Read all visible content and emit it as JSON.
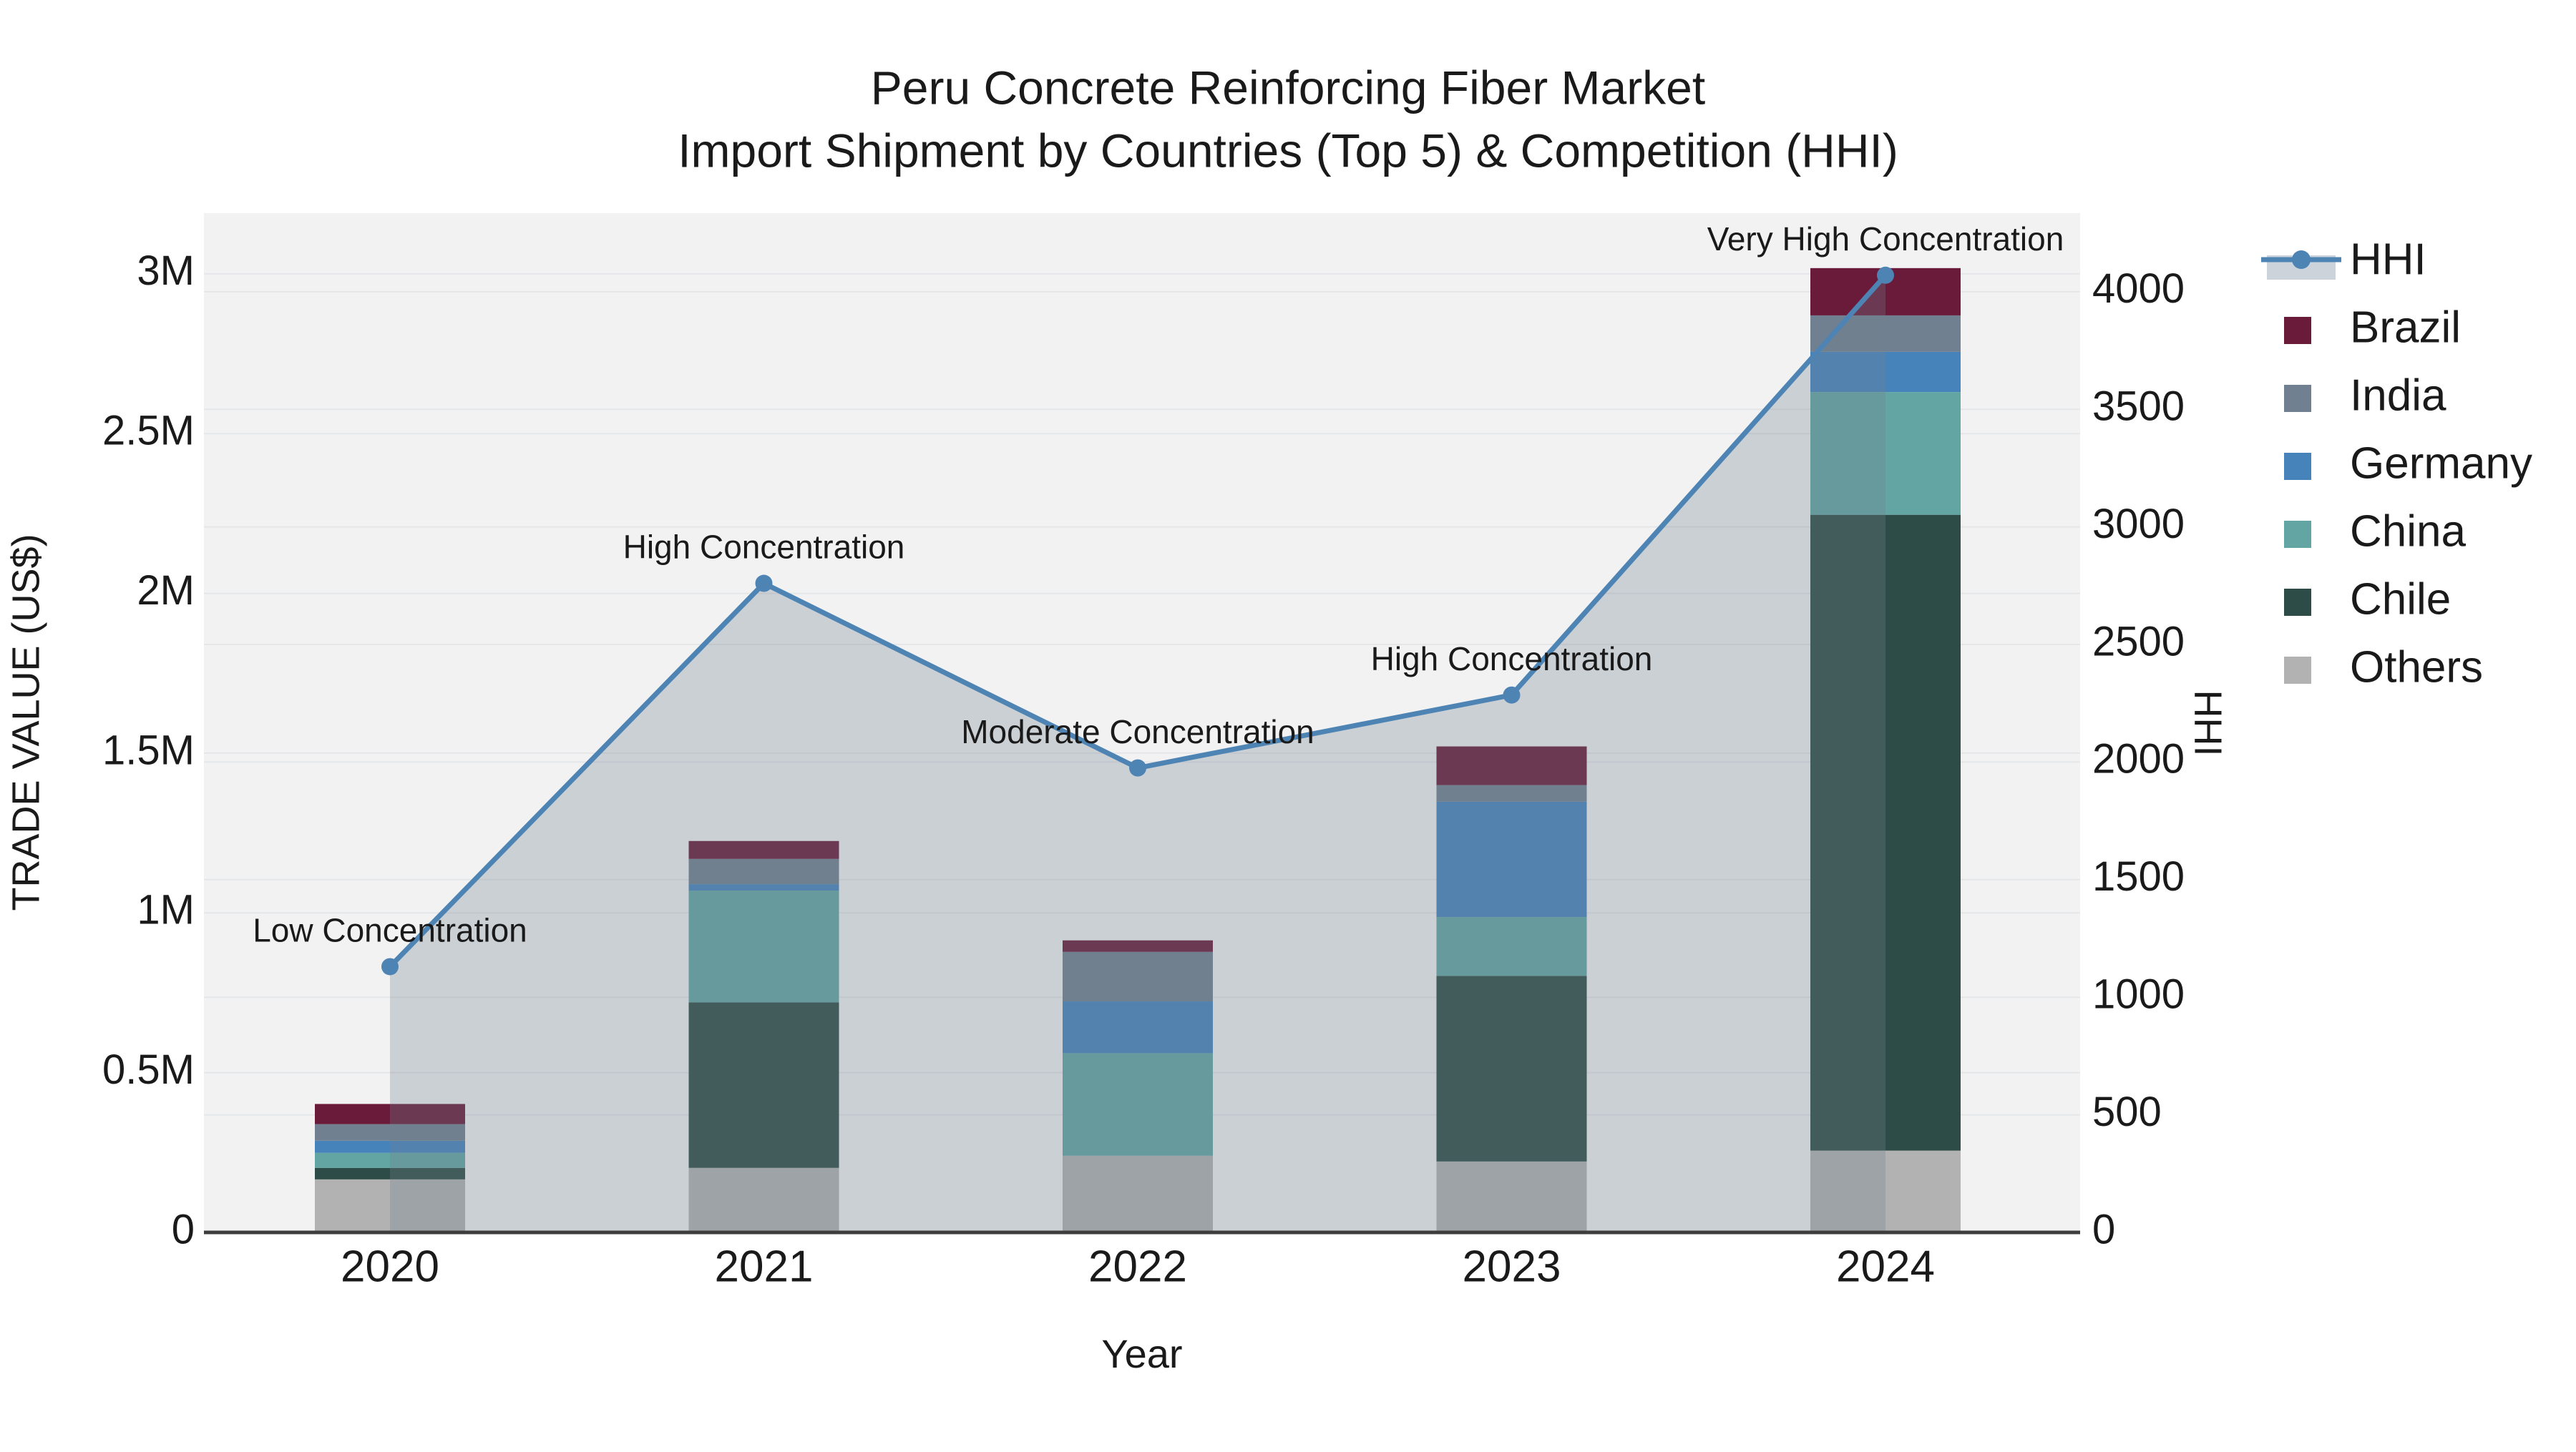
{
  "chart_data": {
    "type": "bar",
    "title": {
      "line1": "Peru Concrete Reinforcing Fiber Market",
      "line2": "Import Shipment by Countries (Top 5) & Competition (HHI)"
    },
    "categories": [
      "2020",
      "2021",
      "2022",
      "2023",
      "2024"
    ],
    "series": [
      {
        "name": "Brazil",
        "color": "#6b1b3a",
        "values": [
          0.063,
          0.056,
          0.036,
          0.121,
          0.148
        ]
      },
      {
        "name": "India",
        "color": "#708090",
        "values": [
          0.052,
          0.079,
          0.155,
          0.052,
          0.114
        ]
      },
      {
        "name": "Germany",
        "color": "#4583ba",
        "values": [
          0.038,
          0.02,
          0.162,
          0.361,
          0.126
        ]
      },
      {
        "name": "China",
        "color": "#62a5a2",
        "values": [
          0.047,
          0.35,
          0.321,
          0.184,
          0.384
        ]
      },
      {
        "name": "Chile",
        "color": "#2e4c47",
        "values": [
          0.036,
          0.518,
          0.0,
          0.581,
          1.99
        ]
      },
      {
        "name": "Others",
        "color": "#b2b2b2",
        "values": [
          0.166,
          0.202,
          0.24,
          0.222,
          0.256
        ]
      }
    ],
    "stack_order": [
      "Others",
      "Chile",
      "China",
      "Germany",
      "India",
      "Brazil"
    ],
    "bar_totals_musd": [
      0.4,
      1.22,
      0.91,
      1.52,
      3.02
    ],
    "hhi": {
      "name": "HHI",
      "line_color": "#4e84b4",
      "fill_color": "rgba(112,128,144,0.30)",
      "values": [
        1130,
        2760,
        1975,
        2285,
        4070
      ]
    },
    "annotations": [
      {
        "text": "Low Concentration",
        "category": "2020"
      },
      {
        "text": "High Concentration",
        "category": "2021"
      },
      {
        "text": "Moderate Concentration",
        "category": "2022"
      },
      {
        "text": "High Concentration",
        "category": "2023"
      },
      {
        "text": "Very High Concentration",
        "category": "2024"
      }
    ],
    "x": {
      "title": "Year"
    },
    "y1": {
      "title": "TRADE VALUE (US$)",
      "tick_values": [
        0,
        0.5,
        1,
        1.5,
        2,
        2.5,
        3
      ],
      "tick_labels": [
        "0",
        "0.5M",
        "1M",
        "1.5M",
        "2M",
        "2.5M",
        "3M"
      ],
      "max": 3.19,
      "grid": true
    },
    "y2": {
      "title": "HHI",
      "tick_values": [
        0,
        500,
        1000,
        1500,
        2000,
        2500,
        3000,
        3500,
        4000
      ],
      "tick_labels": [
        "0",
        "500",
        "1000",
        "1500",
        "2000",
        "2500",
        "3000",
        "3500",
        "4000"
      ],
      "max": 4334,
      "grid": true
    },
    "legend": {
      "position": "right",
      "items": [
        "HHI",
        "Brazil",
        "India",
        "Germany",
        "China",
        "Chile",
        "Others"
      ]
    },
    "colors": {
      "plot_background": "#f2f2f3",
      "gridline": "#e4e6e8",
      "axis_line": "#3d3d3d",
      "text": "#1a1a1a",
      "legend_hhi_band": "#ccd3db"
    }
  }
}
